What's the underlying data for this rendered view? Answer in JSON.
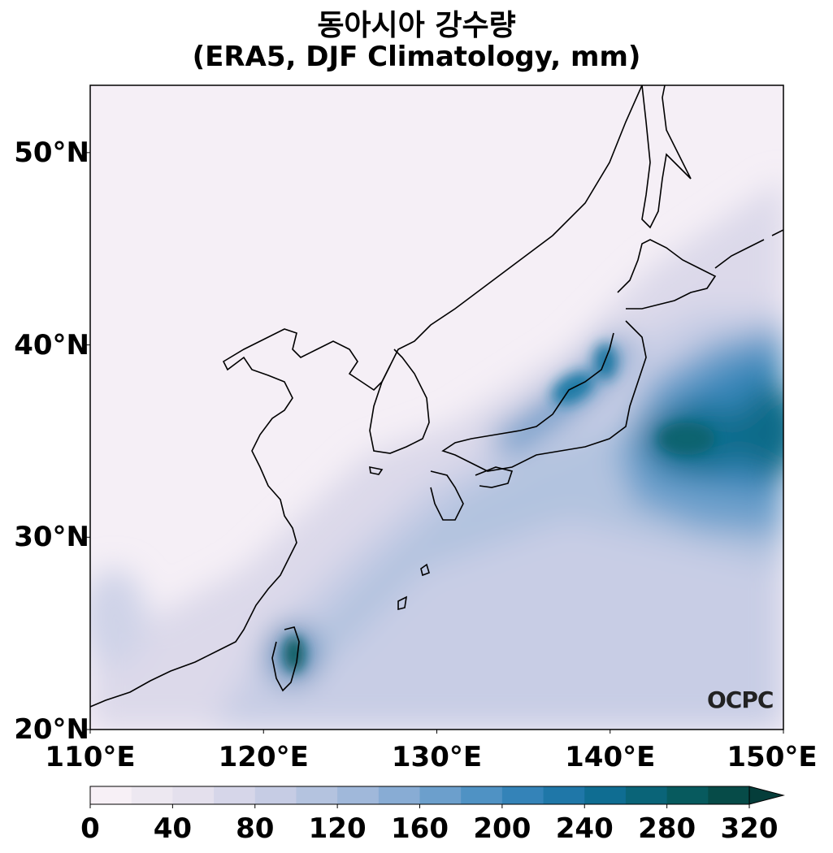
{
  "title": {
    "line1": "동아시아 강수량",
    "line2": "(ERA5, DJF Climatology, mm)"
  },
  "map": {
    "extent": {
      "lon": [
        110,
        150
      ],
      "lat": [
        20,
        53.5
      ]
    },
    "lat_ticks": [
      {
        "value": 20,
        "label": "20°N"
      },
      {
        "value": 30,
        "label": "30°N"
      },
      {
        "value": 40,
        "label": "40°N"
      },
      {
        "value": 50,
        "label": "50°N"
      }
    ],
    "lon_ticks": [
      {
        "value": 110,
        "label": "110°E"
      },
      {
        "value": 120,
        "label": "120°E"
      },
      {
        "value": 130,
        "label": "130°E"
      },
      {
        "value": 140,
        "label": "140°E"
      },
      {
        "value": 150,
        "label": "150°E"
      }
    ],
    "precip_maxima": [
      {
        "name": "Pacific southeast of Japan",
        "lon": 145.5,
        "lat": 35.2,
        "value_mm": 270
      },
      {
        "name": "Honshu (Japan Sea coast)",
        "lon": 138.5,
        "lat": 37.8,
        "value_mm": 230
      },
      {
        "name": "Taiwan",
        "lon": 121.8,
        "lat": 24.2,
        "value_mm": 280
      }
    ]
  },
  "colorbar": {
    "ticks": [
      "0",
      "40",
      "80",
      "120",
      "160",
      "200",
      "240",
      "280",
      "320"
    ],
    "min": 0,
    "max": 320,
    "step": 20,
    "extend": "max",
    "colors": [
      "#f7f0f6",
      "#ede8f1",
      "#e4e0ed",
      "#d6d6e9",
      "#c6cce4",
      "#b4c3df",
      "#a0b8da",
      "#88acd4",
      "#6c9fcc",
      "#4f92c4",
      "#3483b8",
      "#1f77a8",
      "#0f6d92",
      "#0a6478",
      "#075a5e",
      "#064b48"
    ]
  },
  "watermark": "OCPC"
}
